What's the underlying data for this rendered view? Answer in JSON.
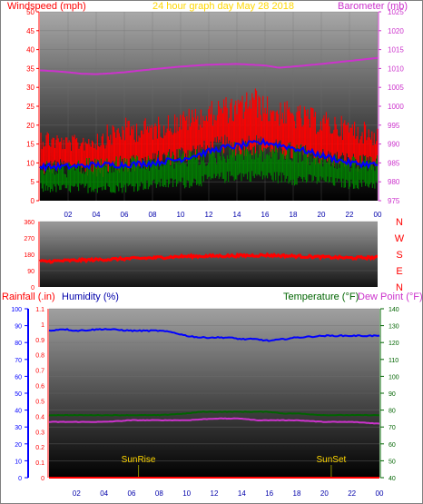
{
  "header": {
    "left_title": "Windspeed (mph)",
    "center_title": "24 hour graph day   May 28 2018",
    "right_title": "Barometer (mb)"
  },
  "colors": {
    "wind_speed": "#ff0000",
    "wind_gust": "#ff0000",
    "wind_avg": "#0000ff",
    "wind_low": "#008000",
    "barometer": "#cc33cc",
    "direction": "#ff0000",
    "humidity": "#0000ff",
    "temperature": "#006400",
    "dew_point": "#cc33cc",
    "rainfall": "#ff0000",
    "yellow_text": "#ffd700",
    "axis_gray": "#808080"
  },
  "x_tick_labels": [
    "02",
    "04",
    "06",
    "08",
    "10",
    "12",
    "14",
    "16",
    "18",
    "20",
    "22",
    "00"
  ],
  "wind_axis": {
    "ticks": [
      "0",
      "5",
      "10",
      "15",
      "20",
      "25",
      "30",
      "35",
      "40",
      "45",
      "50"
    ]
  },
  "baro_axis": {
    "ticks": [
      "975",
      "980",
      "985",
      "990",
      "995",
      "1000",
      "1005",
      "1010",
      "1015",
      "1020",
      "1025"
    ]
  },
  "direction_axis": {
    "ticks": [
      "0",
      "90",
      "180",
      "270",
      "360"
    ]
  },
  "compass": [
    "N",
    "W",
    "S",
    "E",
    "N"
  ],
  "bottom_header": {
    "rain_label": "Rainfall (.in)",
    "humidity_label": "Humidity (%)",
    "temp_label": "Temperature (°F)",
    "dew_label": "Dew Point (°F)"
  },
  "humidity_axis": {
    "ticks": [
      "0",
      "10",
      "20",
      "30",
      "40",
      "50",
      "60",
      "70",
      "80",
      "90",
      "100"
    ]
  },
  "rain_axis": {
    "ticks": [
      "0",
      "0.1",
      "0.2",
      "0.3",
      "0.4",
      "0.5",
      "0.6",
      "0.7",
      "0.8",
      "0.9",
      "1",
      "1.1"
    ]
  },
  "temp_axis": {
    "ticks": [
      "40",
      "50",
      "60",
      "70",
      "80",
      "90",
      "100",
      "110",
      "120",
      "130",
      "140"
    ]
  },
  "annotations": {
    "sunrise": "SunRise",
    "sunset": "SunSet"
  },
  "chart_data": [
    {
      "type": "line",
      "chart": "wind_and_barometer",
      "x_range_hours": [
        0,
        24
      ],
      "ylim_wind": [
        0,
        50
      ],
      "ylim_baro": [
        975,
        1025
      ],
      "series": [
        {
          "name": "Windspeed (mph)",
          "kind": "gust_band",
          "x": [
            0,
            2,
            4,
            6,
            8,
            10,
            12,
            13,
            14,
            15,
            16,
            18,
            20,
            22,
            24
          ],
          "low": [
            6,
            8,
            6,
            7,
            8,
            10,
            11,
            12,
            11,
            12,
            11,
            10,
            9,
            8,
            7
          ],
          "high": [
            20,
            17,
            19,
            22,
            22,
            24,
            26,
            28,
            27,
            31,
            28,
            26,
            24,
            22,
            20
          ]
        },
        {
          "name": "Windspeed (mph)",
          "kind": "average",
          "x": [
            0,
            2,
            4,
            6,
            8,
            10,
            12,
            13,
            14,
            15,
            16,
            18,
            20,
            22,
            24
          ],
          "y": [
            9,
            9,
            9.5,
            9.5,
            10,
            11,
            13,
            14,
            14.5,
            15,
            15.5,
            14,
            12,
            10,
            9.5
          ]
        },
        {
          "name": "Windspeed (mph)",
          "kind": "low_band",
          "x": [
            0,
            2,
            4,
            6,
            8,
            10,
            12,
            14,
            16,
            18,
            20,
            22,
            24
          ],
          "low": [
            2,
            2,
            2,
            2,
            3,
            3,
            4,
            5,
            5,
            4,
            4,
            3,
            3
          ],
          "high": [
            11,
            10,
            12,
            12,
            12,
            14,
            14,
            16,
            15,
            16,
            13,
            12,
            12
          ]
        },
        {
          "name": "Barometer (mb)",
          "x": [
            0,
            1,
            2,
            3,
            4,
            5,
            6,
            8,
            10,
            12,
            14,
            16,
            17,
            18,
            20,
            22,
            24
          ],
          "y": [
            1009.5,
            1009.3,
            1009.0,
            1008.6,
            1008.5,
            1008.7,
            1009.0,
            1009.8,
            1010.5,
            1011.0,
            1011.2,
            1010.8,
            1010.2,
            1010.5,
            1011.2,
            1012.0,
            1012.8
          ]
        }
      ]
    },
    {
      "type": "line",
      "chart": "wind_direction",
      "x_range_hours": [
        0,
        24
      ],
      "ylim": [
        0,
        360
      ],
      "series": [
        {
          "name": "Wind direction",
          "x": [
            0,
            2,
            4,
            6,
            8,
            10,
            12,
            14,
            16,
            18,
            20,
            22,
            24
          ],
          "y": [
            140,
            145,
            150,
            155,
            160,
            168,
            170,
            172,
            175,
            170,
            165,
            160,
            162
          ]
        }
      ]
    },
    {
      "type": "line",
      "chart": "humidity_temperature_rain",
      "x_range_hours": [
        0,
        24
      ],
      "ylim_humidity": [
        0,
        100
      ],
      "ylim_temp": [
        40,
        140
      ],
      "ylim_rain": [
        0,
        1.1
      ],
      "series": [
        {
          "name": "Humidity (%)",
          "x": [
            0,
            1,
            2,
            4,
            6,
            8,
            9,
            10,
            11,
            12,
            13,
            14,
            15,
            16,
            17,
            18,
            20,
            22,
            24
          ],
          "y": [
            87,
            88,
            87,
            88,
            87,
            87,
            86,
            84,
            83,
            83,
            83,
            82,
            82,
            81,
            82,
            83,
            84,
            84,
            84
          ]
        },
        {
          "name": "Temperature (°F)",
          "x": [
            0,
            2,
            4,
            6,
            8,
            10,
            11,
            12,
            14,
            16,
            17,
            18,
            20,
            22,
            24
          ],
          "y": [
            77,
            77,
            77,
            77,
            77,
            78,
            79,
            79,
            79,
            79,
            78,
            78,
            77,
            77,
            77
          ]
        },
        {
          "name": "Dew Point (°F)",
          "x": [
            0,
            2,
            4,
            6,
            8,
            10,
            12,
            13,
            14,
            15,
            16,
            18,
            20,
            22,
            24
          ],
          "y": [
            73,
            73,
            73,
            74,
            74,
            74,
            75,
            75,
            75,
            74,
            74,
            74,
            73,
            73,
            72
          ]
        },
        {
          "name": "Rainfall (.in)",
          "x": [
            0,
            24
          ],
          "y": [
            0,
            0
          ]
        }
      ]
    }
  ]
}
